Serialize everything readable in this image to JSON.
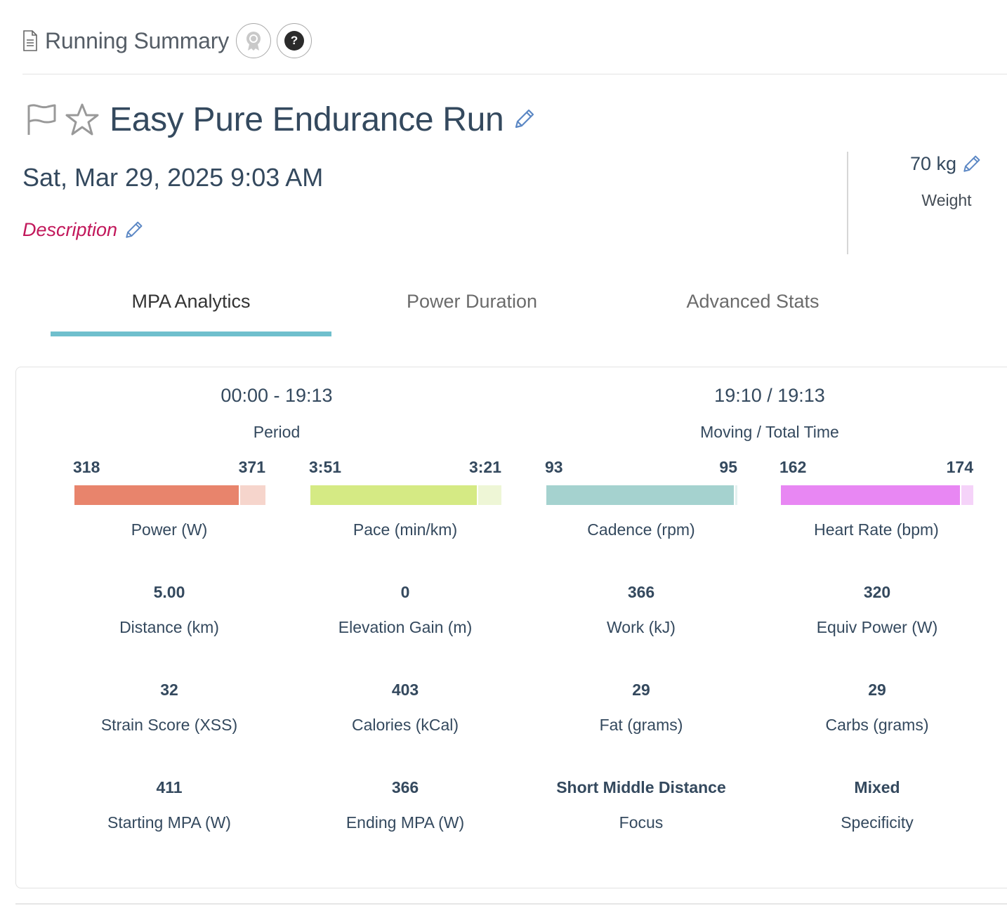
{
  "header": {
    "title": "Running Summary",
    "icons": [
      "document-icon",
      "award-icon",
      "help-icon"
    ]
  },
  "workout": {
    "title": "Easy Pure Endurance Run",
    "date": "Sat, Mar 29, 2025 9:03 AM",
    "description_label": "Description",
    "weight_value": "70 kg",
    "weight_label": "Weight"
  },
  "tabs": [
    {
      "label": "MPA Analytics",
      "active": true
    },
    {
      "label": "Power Duration",
      "active": false
    },
    {
      "label": "Advanced Stats",
      "active": false
    }
  ],
  "summary": {
    "period_value": "00:00 - 19:13",
    "period_label": "Period",
    "time_value": "19:10 / 19:13",
    "time_label": "Moving / Total Time"
  },
  "bars": [
    {
      "avg": "318",
      "max": "371",
      "label": "Power (W)",
      "fraction": 0.86,
      "color": "#e8846c",
      "light": "#f6d5cc"
    },
    {
      "avg": "3:51",
      "max": "3:21",
      "label": "Pace (min/km)",
      "fraction": 0.87,
      "color": "#d5ea84",
      "light": "#eef6d6"
    },
    {
      "avg": "93",
      "max": "95",
      "label": "Cadence (rpm)",
      "fraction": 0.98,
      "color": "#a5d2cf",
      "light": "#e3f1f0"
    },
    {
      "avg": "162",
      "max": "174",
      "label": "Heart Rate (bpm)",
      "fraction": 0.93,
      "color": "#e887f3",
      "light": "#f5d3f9"
    }
  ],
  "metrics": [
    {
      "value": "5.00",
      "label": "Distance (km)"
    },
    {
      "value": "0",
      "label": "Elevation Gain (m)"
    },
    {
      "value": "366",
      "label": "Work (kJ)"
    },
    {
      "value": "320",
      "label": "Equiv Power (W)"
    },
    {
      "value": "32",
      "label": "Strain Score (XSS)"
    },
    {
      "value": "403",
      "label": "Calories (kCal)"
    },
    {
      "value": "29",
      "label": "Fat (grams)"
    },
    {
      "value": "29",
      "label": "Carbs (grams)"
    },
    {
      "value": "411",
      "label": "Starting MPA (W)"
    },
    {
      "value": "366",
      "label": "Ending MPA (W)"
    },
    {
      "value": "Short Middle Distance",
      "label": "Focus"
    },
    {
      "value": "Mixed",
      "label": "Specificity"
    }
  ]
}
